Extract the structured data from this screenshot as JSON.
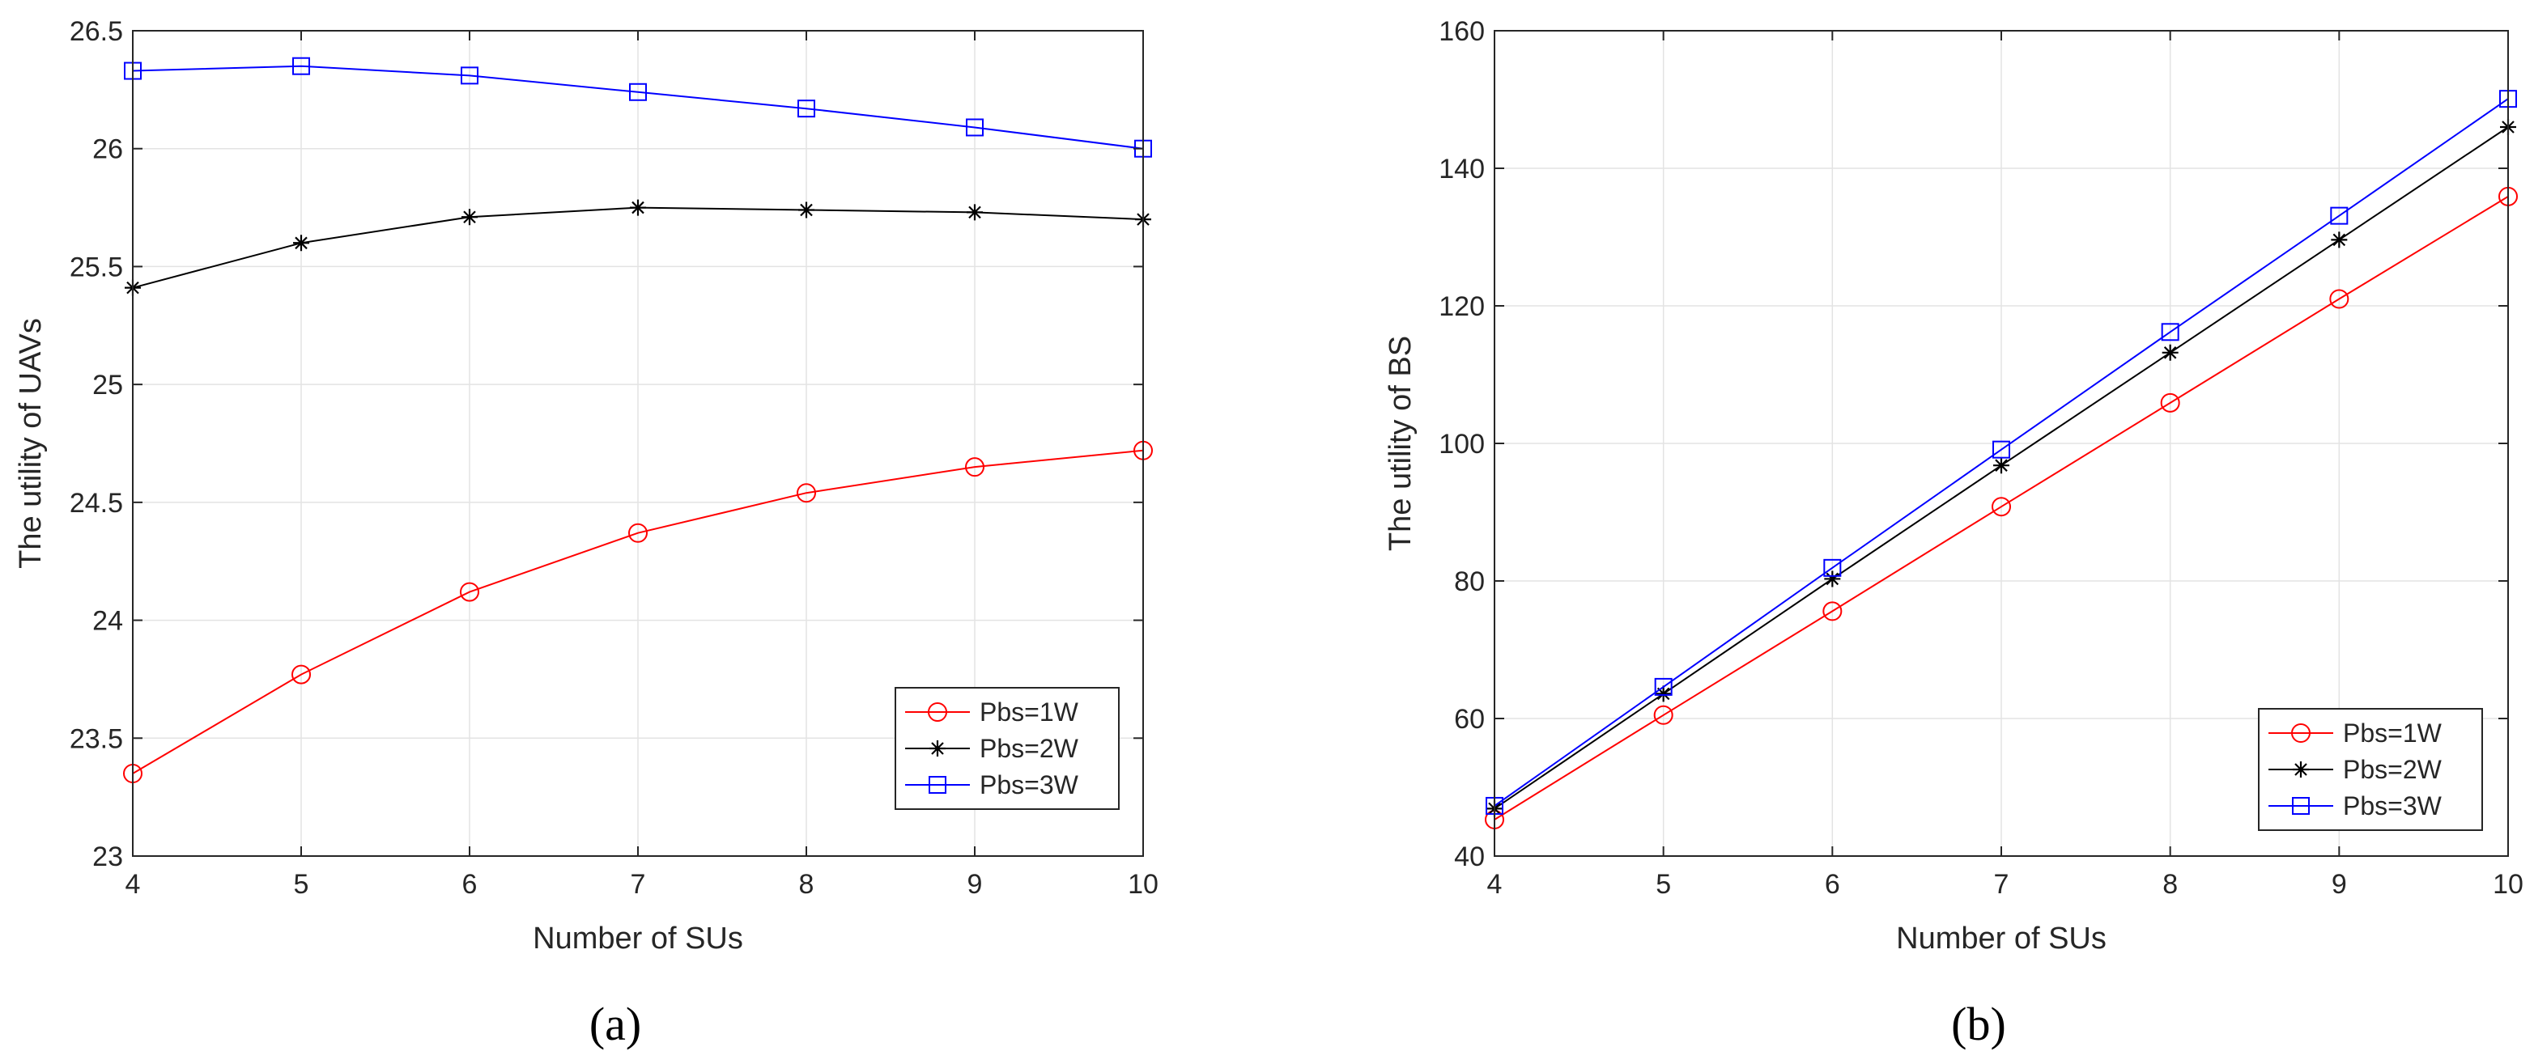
{
  "chart_data": [
    {
      "type": "line",
      "panel_label": "(a)",
      "xlabel": "Number of SUs",
      "ylabel": "The utility of UAVs",
      "xlim": [
        4,
        10
      ],
      "ylim": [
        23,
        26.5
      ],
      "x_ticks": [
        4,
        5,
        6,
        7,
        8,
        9,
        10
      ],
      "y_ticks": [
        23,
        23.5,
        24,
        24.5,
        25,
        25.5,
        26,
        26.5
      ],
      "x_tick_labels": [
        "4",
        "5",
        "6",
        "7",
        "8",
        "9",
        "10"
      ],
      "y_tick_labels": [
        "23",
        "23.5",
        "24",
        "24.5",
        "25",
        "25.5",
        "26",
        "26.5"
      ],
      "grid": true,
      "legend_position": "bottom-right",
      "x": [
        4,
        5,
        6,
        7,
        8,
        9,
        10
      ],
      "series": [
        {
          "name": "Pbs=1W",
          "color": "#ff0000",
          "marker": "circle",
          "values": [
            23.35,
            23.77,
            24.12,
            24.37,
            24.54,
            24.65,
            24.72
          ]
        },
        {
          "name": "Pbs=2W",
          "color": "#000000",
          "marker": "asterisk",
          "values": [
            25.41,
            25.6,
            25.71,
            25.75,
            25.74,
            25.73,
            25.7
          ]
        },
        {
          "name": "Pbs=3W",
          "color": "#0000ff",
          "marker": "square",
          "values": [
            26.33,
            26.35,
            26.31,
            26.24,
            26.17,
            26.09,
            26.0
          ]
        }
      ]
    },
    {
      "type": "line",
      "panel_label": "(b)",
      "xlabel": "Number of SUs",
      "ylabel": "The utility of BS",
      "xlim": [
        4,
        10
      ],
      "ylim": [
        40,
        160
      ],
      "x_ticks": [
        4,
        5,
        6,
        7,
        8,
        9,
        10
      ],
      "y_ticks": [
        40,
        60,
        80,
        100,
        120,
        140,
        160
      ],
      "x_tick_labels": [
        "4",
        "5",
        "6",
        "7",
        "8",
        "9",
        "10"
      ],
      "y_tick_labels": [
        "40",
        "60",
        "80",
        "100",
        "120",
        "140",
        "160"
      ],
      "grid": true,
      "legend_position": "bottom-right",
      "x": [
        4,
        5,
        6,
        7,
        8,
        9,
        10
      ],
      "series": [
        {
          "name": "Pbs=1W",
          "color": "#ff0000",
          "marker": "circle",
          "values": [
            45.3,
            60.5,
            75.6,
            90.8,
            105.9,
            121.0,
            135.9
          ]
        },
        {
          "name": "Pbs=2W",
          "color": "#000000",
          "marker": "asterisk",
          "values": [
            46.9,
            63.6,
            80.3,
            96.8,
            113.2,
            129.6,
            146.0
          ]
        },
        {
          "name": "Pbs=3W",
          "color": "#0000ff",
          "marker": "square",
          "values": [
            47.3,
            64.6,
            81.9,
            99.1,
            116.2,
            133.1,
            150.1
          ]
        }
      ]
    }
  ]
}
